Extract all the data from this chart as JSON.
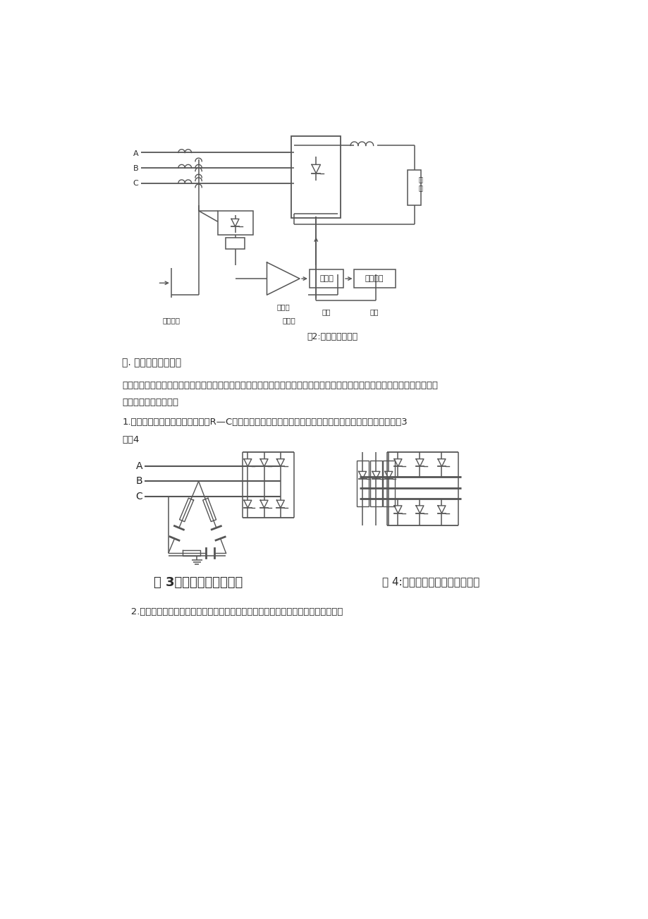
{
  "page_bg": "#ffffff",
  "fig_width": 9.2,
  "fig_height": 13.03,
  "text_color": "#2a2a2a",
  "fig2_caption": "图2:过流保护原理图",
  "section2_title": "二. 晶闸管的过压保护",
  "para1": "晶闸管设备在运行过程中，会受到由交流供电电网进入的操作过电压和雷击过电压的侵袭。同时，设备自身运行中以及非正常运",
  "para2": "行中也有过电压出现。",
  "item1": "1.过电压保护的第一种方法是并接R—C阻容吸收回路，以及用压敏电阻或硒堆等非线性元件加以抑制。见图3",
  "item1b": "和图4",
  "fig3_caption": "图 3阻容三角抑制过电压",
  "fig4_caption": "图 4:压敏电阻或硒堆抑制过电压",
  "item2": "   2.过电压保护的第二种方法是采用电子电路进行保护。常见的电子保护原理图如下："
}
